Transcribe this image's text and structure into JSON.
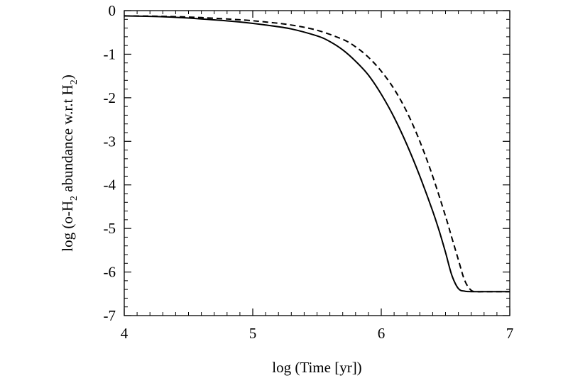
{
  "chart_data": {
    "type": "line",
    "xlabel": "log (Time [yr])",
    "ylabel": {
      "parts": [
        "log (o-H",
        "2",
        " abundance w.r.t H",
        "2",
        ")"
      ]
    },
    "xlim": [
      4,
      7
    ],
    "ylim": [
      -7,
      0
    ],
    "xticks": [
      4,
      5,
      6,
      7
    ],
    "xtick_labels": [
      "4",
      "5",
      "6",
      "7"
    ],
    "yticks": [
      0,
      -1,
      -2,
      -3,
      -4,
      -5,
      -6,
      -7
    ],
    "ytick_labels": [
      "0",
      "-1",
      "-2",
      "-3",
      "-4",
      "-5",
      "-6",
      "-7"
    ],
    "grid": false,
    "series": [
      {
        "style": "solid",
        "color": "#000000",
        "x": [
          4.0,
          4.3,
          4.6,
          4.9,
          5.1,
          5.3,
          5.5,
          5.6,
          5.7,
          5.8,
          5.9,
          6.0,
          6.1,
          6.2,
          6.3,
          6.4,
          6.45,
          6.5,
          6.55,
          6.6,
          6.65,
          6.7,
          6.8,
          7.0
        ],
        "y": [
          -0.12,
          -0.14,
          -0.19,
          -0.26,
          -0.33,
          -0.42,
          -0.58,
          -0.71,
          -0.9,
          -1.16,
          -1.48,
          -1.92,
          -2.45,
          -3.08,
          -3.8,
          -4.6,
          -5.05,
          -5.55,
          -6.08,
          -6.38,
          -6.44,
          -6.45,
          -6.45,
          -6.45
        ]
      },
      {
        "style": "dashed",
        "color": "#000000",
        "x": [
          4.0,
          4.3,
          4.6,
          4.9,
          5.1,
          5.3,
          5.5,
          5.7,
          5.8,
          5.9,
          6.0,
          6.1,
          6.2,
          6.3,
          6.4,
          6.5,
          6.55,
          6.6,
          6.65,
          6.7,
          6.75,
          6.8,
          6.85,
          7.0
        ],
        "y": [
          -0.12,
          -0.13,
          -0.16,
          -0.21,
          -0.26,
          -0.33,
          -0.45,
          -0.66,
          -0.83,
          -1.07,
          -1.39,
          -1.8,
          -2.33,
          -3.0,
          -3.8,
          -4.72,
          -5.22,
          -5.72,
          -6.2,
          -6.42,
          -6.45,
          -6.45,
          -6.45,
          -6.45
        ]
      }
    ]
  }
}
